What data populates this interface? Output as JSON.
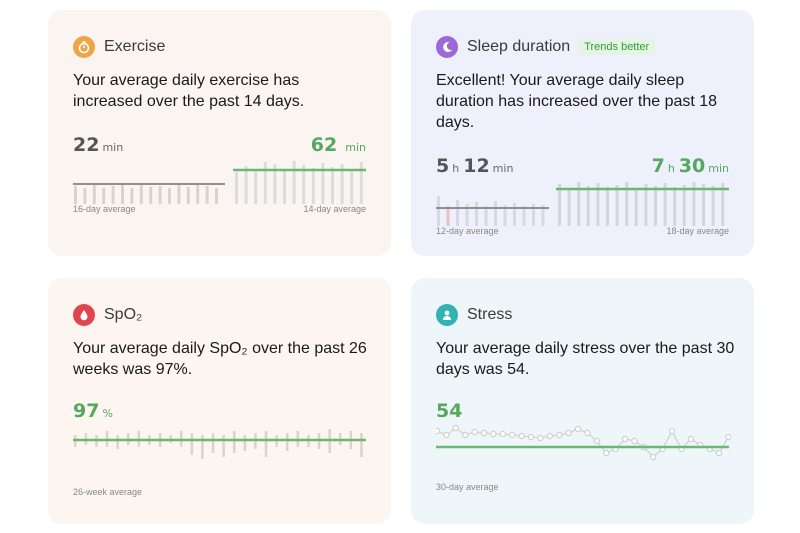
{
  "exercise": {
    "title": "Exercise",
    "description": "Your average daily exercise has increased over the past 14 days.",
    "prev_value": "22",
    "prev_unit": "min",
    "curr_value": "62",
    "curr_unit": "min",
    "prev_caption": "16-day average",
    "curr_caption": "14-day average",
    "icon": "stopwatch-icon",
    "icon_color": "#f0a44a"
  },
  "sleep": {
    "title": "Sleep duration",
    "badge": "Trends better",
    "description": "Excellent!  Your average daily sleep duration has increased over the past 18 days.",
    "prev_h": "5",
    "prev_h_unit": "h",
    "prev_m": "12",
    "prev_m_unit": "min",
    "curr_h": "7",
    "curr_h_unit": "h",
    "curr_m": "30",
    "curr_m_unit": "min",
    "prev_caption": "12-day average",
    "curr_caption": "18-day average",
    "icon": "moon-icon",
    "icon_color": "#9b6ad6"
  },
  "spo2": {
    "title": "SpO₂",
    "description": "Your average daily SpO₂ over the past 26 weeks was 97%.",
    "value": "97",
    "unit": "%",
    "caption": "26-week average",
    "icon": "blood-drop-icon",
    "icon_color": "#e0454f"
  },
  "stress": {
    "title": "Stress",
    "description": "Your average daily stress over the past 30 days was 54.",
    "value": "54",
    "caption": "30-day average",
    "icon": "person-icon",
    "icon_color": "#2fb3b3"
  }
}
